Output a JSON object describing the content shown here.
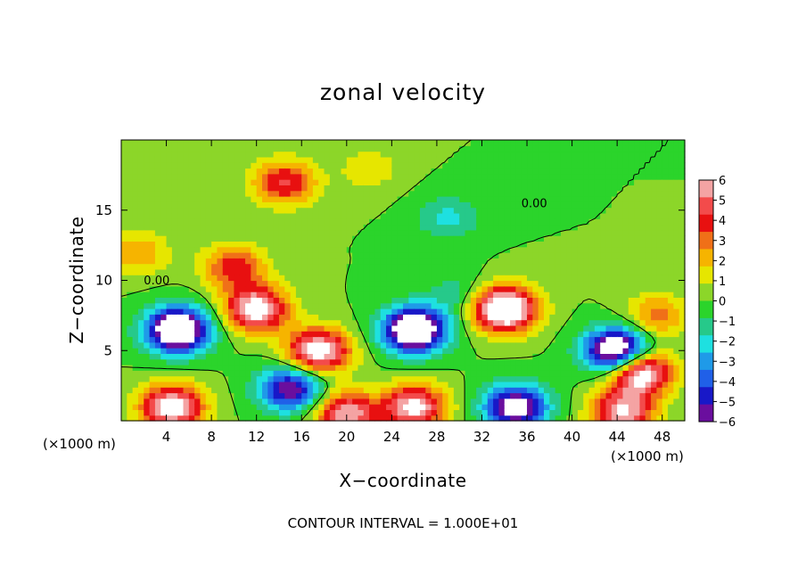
{
  "chart_data": {
    "type": "heatmap",
    "title": "zonal velocity",
    "xlabel": "X−coordinate",
    "ylabel": "Z−coordinate",
    "x_unit_left": "(×1000 m)",
    "x_unit_right": "(×1000 m)",
    "xlim": [
      0,
      50
    ],
    "ylim": [
      0,
      20
    ],
    "x_ticks": [
      "4",
      "8",
      "12",
      "16",
      "20",
      "24",
      "28",
      "32",
      "36",
      "40",
      "44",
      "48"
    ],
    "x_tick_values": [
      4,
      8,
      12,
      16,
      20,
      24,
      28,
      32,
      36,
      40,
      44,
      48
    ],
    "y_ticks": [
      "5",
      "10",
      "15"
    ],
    "y_tick_values": [
      5,
      10,
      15
    ],
    "colorbar": {
      "labels": [
        "6",
        "5",
        "4",
        "3",
        "2",
        "1",
        "0",
        "−1",
        "−2",
        "−3",
        "−4",
        "−5",
        "−6"
      ],
      "values": [
        6,
        5,
        4,
        3,
        2,
        1,
        0,
        -1,
        -2,
        -3,
        -4,
        -5,
        -6
      ],
      "range": [
        -6,
        6
      ],
      "colors": [
        "#f4a3a3",
        "#f34b4b",
        "#e81010",
        "#f07018",
        "#f6b400",
        "#e6e600",
        "#8cd629",
        "#2bd42b",
        "#26c98a",
        "#1ee0e0",
        "#1f9ae8",
        "#2060e8",
        "#1818c8",
        "#6a0e9e"
      ]
    },
    "features": [
      {
        "x": 14.5,
        "z": 17.0,
        "value": 4.5
      },
      {
        "x": 10.0,
        "z": 11.0,
        "value": 4.0
      },
      {
        "x": 17.5,
        "z": 5.0,
        "value": 7.0
      },
      {
        "x": 12.0,
        "z": 8.0,
        "value": 7.0
      },
      {
        "x": 34.0,
        "z": 8.0,
        "value": 9.0
      },
      {
        "x": 46.0,
        "z": 3.5,
        "value": 8.0
      },
      {
        "x": 5.0,
        "z": 6.5,
        "value": -9.0
      },
      {
        "x": 26.0,
        "z": 6.5,
        "value": -9.0
      },
      {
        "x": 44.0,
        "z": 5.0,
        "value": -9.0
      },
      {
        "x": 15.0,
        "z": 2.3,
        "value": -6.0
      },
      {
        "x": 35.0,
        "z": 1.0,
        "value": -7.0
      },
      {
        "x": 4.5,
        "z": 1.0,
        "value": 7.0
      },
      {
        "x": 26.0,
        "z": 1.0,
        "value": 6.5
      },
      {
        "x": 20.0,
        "z": 0.5,
        "value": 6.0
      },
      {
        "x": 44.5,
        "z": 0.6,
        "value": 6.0
      },
      {
        "x": 29.0,
        "z": 14.5,
        "value": -2.0
      },
      {
        "x": 47.5,
        "z": 7.5,
        "value": 3.0
      },
      {
        "x": 1.5,
        "z": 12.0,
        "value": 2.5
      },
      {
        "x": 22.0,
        "z": 18.0,
        "value": 1.5
      },
      {
        "x": 30.0,
        "z": 9.0,
        "value": -1.5
      }
    ],
    "contour_labels": [
      {
        "text": "0.00",
        "x": 2.0,
        "z": 9.7
      },
      {
        "text": "0.00",
        "x": 35.5,
        "z": 15.2
      }
    ],
    "legend_position": "right",
    "grid": false,
    "note": "CONTOUR INTERVAL = 1.000E+01"
  }
}
